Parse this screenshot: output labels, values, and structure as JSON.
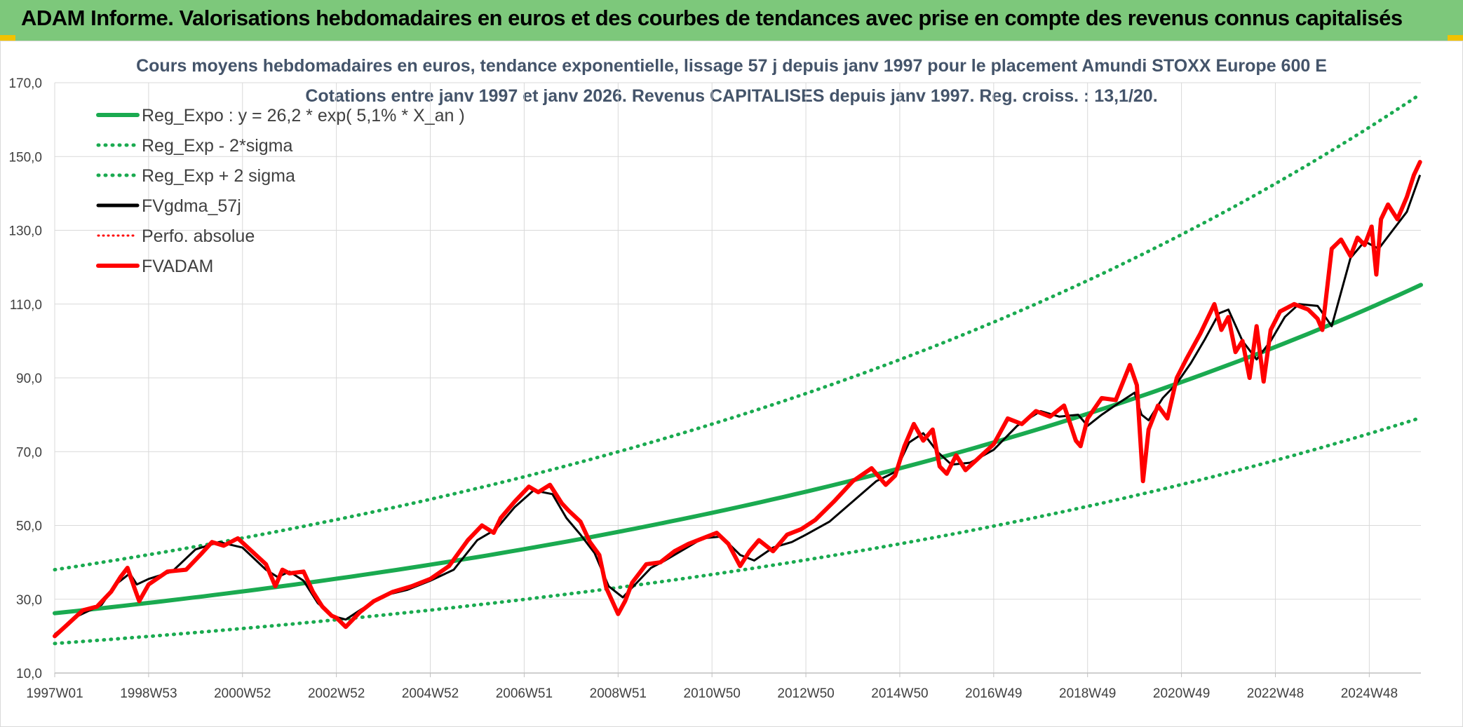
{
  "banner": {
    "title": "ADAM Informe. Valorisations hebdomadaires en euros et des courbes de tendances avec prise en compte des revenus connus capitalisés"
  },
  "chart_data": {
    "type": "line",
    "title": "Cours moyens hebdomadaires en euros, tendance exponentielle, lissage 57 j depuis janv 1997 pour le placement Amundi STOXX Europe 600 E",
    "subtitle": "Cotations entre janv 1997 et janv 2026. Revenus CAPITALISES depuis janv 1997. Reg. croiss. : 13,1/20.",
    "x_range": [
      1997.0,
      2026.1
    ],
    "ylim": [
      10,
      170
    ],
    "y_ticks": [
      "10,0",
      "30,0",
      "50,0",
      "70,0",
      "90,0",
      "110,0",
      "130,0",
      "150,0",
      "170,0"
    ],
    "y_tick_values": [
      10,
      30,
      50,
      70,
      90,
      110,
      130,
      150,
      170
    ],
    "x_ticks": [
      "1997W01",
      "1998W53",
      "2000W52",
      "2002W52",
      "2004W52",
      "2006W51",
      "2008W51",
      "2010W50",
      "2012W50",
      "2014W50",
      "2016W49",
      "2018W49",
      "2020W49",
      "2022W48",
      "2024W48"
    ],
    "x_tick_values": [
      1997.0,
      1999.0,
      2001.0,
      2003.0,
      2005.0,
      2007.0,
      2009.0,
      2011.0,
      2013.0,
      2015.0,
      2017.0,
      2019.0,
      2021.0,
      2023.0,
      2025.0
    ],
    "grid": true,
    "legend_position": "top-left",
    "legend": [
      "Reg_Expo : y = 26,2 * exp( 5,1% *  X_an )",
      "Reg_Exp - 2*sigma",
      "Reg_Exp + 2 sigma",
      "FVgdma_57j",
      "Perfo. absolue",
      "FVADAM"
    ],
    "series": [
      {
        "name": "Reg_Expo : y = 26,2 * exp( 5,1% *  X_an )",
        "style": "solid-thick",
        "color": "#1aaa50",
        "x": [
          1997.0,
          2026.1
        ],
        "values": [
          26.2,
          115.2
        ],
        "shape": "exponential"
      },
      {
        "name": "Reg_Exp - 2*sigma",
        "style": "dotted",
        "color": "#1aaa50",
        "x": [
          1997.0,
          2026.1
        ],
        "values": [
          18.0,
          79.2
        ],
        "shape": "exponential"
      },
      {
        "name": "Reg_Exp + 2 sigma",
        "style": "dotted",
        "color": "#1aaa50",
        "x": [
          1997.0,
          2026.1
        ],
        "values": [
          38.0,
          167.0
        ],
        "shape": "exponential"
      },
      {
        "name": "FVgdma_57j",
        "style": "solid",
        "color": "#000000",
        "x": [
          1997.0,
          1997.5,
          1998.0,
          1998.3,
          1998.6,
          1998.75,
          1999.0,
          1999.5,
          2000.0,
          2000.5,
          2001.0,
          2001.5,
          2001.75,
          2002.0,
          2002.3,
          2002.6,
          2002.9,
          2003.2,
          2003.5,
          2004.0,
          2004.5,
          2005.0,
          2005.5,
          2006.0,
          2006.4,
          2006.8,
          2007.2,
          2007.6,
          2007.9,
          2008.2,
          2008.5,
          2008.8,
          2009.1,
          2009.4,
          2009.7,
          2010.0,
          2010.4,
          2010.8,
          2011.2,
          2011.6,
          2011.9,
          2012.3,
          2012.7,
          2013.0,
          2013.5,
          2014.0,
          2014.5,
          2014.9,
          2015.2,
          2015.5,
          2015.8,
          2016.1,
          2016.5,
          2017.0,
          2017.5,
          2018.0,
          2018.4,
          2018.8,
          2019.0,
          2019.3,
          2019.7,
          2020.0,
          2020.15,
          2020.3,
          2020.6,
          2020.9,
          2021.2,
          2021.5,
          2021.8,
          2022.0,
          2022.3,
          2022.6,
          2022.9,
          2023.2,
          2023.5,
          2023.9,
          2024.2,
          2024.6,
          2024.9,
          2025.2,
          2025.5,
          2025.8,
          2026.08
        ],
        "values": [
          20.5,
          25.5,
          28.5,
          34.0,
          37.0,
          34.0,
          35.5,
          37.5,
          43.5,
          45.5,
          44.0,
          38.0,
          36.0,
          37.5,
          35.0,
          29.0,
          25.5,
          24.5,
          27.0,
          31.0,
          32.5,
          35.0,
          38.0,
          46.0,
          49.0,
          55.0,
          59.5,
          58.5,
          52.0,
          47.5,
          42.5,
          33.5,
          30.5,
          34.5,
          38.5,
          40.5,
          43.5,
          46.5,
          47.0,
          42.0,
          40.5,
          44.0,
          45.5,
          47.5,
          51.0,
          56.5,
          62.0,
          64.5,
          72.5,
          75.0,
          70.0,
          66.5,
          67.0,
          70.5,
          77.0,
          81.0,
          79.5,
          80.0,
          77.0,
          80.0,
          83.5,
          86.0,
          80.0,
          78.5,
          84.5,
          88.5,
          94.0,
          100.5,
          107.5,
          108.5,
          100.0,
          95.0,
          100.0,
          106.5,
          110.0,
          109.5,
          104.0,
          122.5,
          127.0,
          125.0,
          130.0,
          135.0,
          145.0
        ]
      },
      {
        "name": "FVADAM",
        "style": "solid-thick",
        "color": "#ff0000",
        "x": [
          1997.0,
          1997.3,
          1997.6,
          1997.9,
          1998.2,
          1998.4,
          1998.55,
          1998.7,
          1998.8,
          1999.0,
          1999.4,
          1999.8,
          2000.1,
          2000.35,
          2000.6,
          2000.9,
          2001.2,
          2001.5,
          2001.7,
          2001.85,
          2002.0,
          2002.3,
          2002.5,
          2002.7,
          2002.9,
          2003.0,
          2003.2,
          2003.5,
          2003.8,
          2004.2,
          2004.6,
          2005.0,
          2005.4,
          2005.8,
          2006.1,
          2006.35,
          2006.5,
          2006.8,
          2007.1,
          2007.3,
          2007.55,
          2007.8,
          2007.95,
          2008.2,
          2008.4,
          2008.6,
          2008.75,
          2009.0,
          2009.15,
          2009.3,
          2009.6,
          2009.9,
          2010.2,
          2010.5,
          2010.8,
          2011.1,
          2011.35,
          2011.6,
          2011.8,
          2012.0,
          2012.3,
          2012.6,
          2012.9,
          2013.2,
          2013.6,
          2014.0,
          2014.4,
          2014.7,
          2014.9,
          2015.1,
          2015.3,
          2015.5,
          2015.7,
          2015.85,
          2016.0,
          2016.2,
          2016.4,
          2016.7,
          2017.0,
          2017.3,
          2017.6,
          2017.9,
          2018.2,
          2018.5,
          2018.75,
          2018.85,
          2019.0,
          2019.3,
          2019.6,
          2019.9,
          2020.05,
          2020.18,
          2020.3,
          2020.5,
          2020.7,
          2020.9,
          2021.1,
          2021.4,
          2021.7,
          2021.85,
          2022.0,
          2022.15,
          2022.3,
          2022.45,
          2022.6,
          2022.75,
          2022.9,
          2023.1,
          2023.4,
          2023.7,
          2023.9,
          2024.0,
          2024.2,
          2024.4,
          2024.6,
          2024.75,
          2024.9,
          2025.05,
          2025.15,
          2025.25,
          2025.4,
          2025.6,
          2025.8,
          2025.95,
          2026.08
        ],
        "values": [
          20.0,
          23.5,
          27.0,
          28.0,
          32.0,
          36.0,
          38.5,
          33.0,
          29.5,
          34.0,
          37.5,
          38.0,
          42.0,
          45.5,
          44.5,
          46.5,
          43.0,
          39.5,
          33.5,
          38.0,
          37.0,
          37.5,
          32.0,
          28.0,
          25.5,
          25.0,
          22.5,
          26.5,
          29.5,
          32.0,
          33.5,
          35.5,
          39.0,
          46.0,
          50.0,
          48.0,
          52.0,
          56.5,
          60.5,
          59.0,
          61.0,
          56.0,
          54.0,
          51.0,
          45.5,
          42.0,
          33.0,
          26.0,
          29.5,
          34.5,
          39.5,
          40.0,
          43.0,
          45.0,
          46.5,
          48.0,
          45.0,
          39.0,
          43.0,
          46.0,
          43.0,
          47.5,
          49.0,
          51.5,
          56.5,
          62.0,
          65.5,
          61.0,
          63.5,
          71.5,
          77.5,
          73.0,
          76.0,
          66.0,
          64.0,
          69.0,
          65.0,
          68.5,
          72.0,
          79.0,
          77.5,
          81.0,
          79.5,
          82.5,
          73.0,
          71.5,
          79.0,
          84.5,
          84.0,
          93.5,
          88.0,
          62.0,
          76.0,
          82.5,
          79.0,
          90.0,
          95.0,
          102.0,
          110.0,
          103.0,
          106.5,
          97.0,
          100.0,
          90.0,
          104.0,
          89.0,
          103.0,
          108.0,
          110.0,
          108.5,
          106.0,
          103.0,
          125.0,
          127.5,
          123.0,
          128.0,
          126.0,
          131.0,
          118.0,
          133.0,
          137.0,
          133.0,
          139.0,
          145.0,
          148.5
        ]
      }
    ]
  }
}
